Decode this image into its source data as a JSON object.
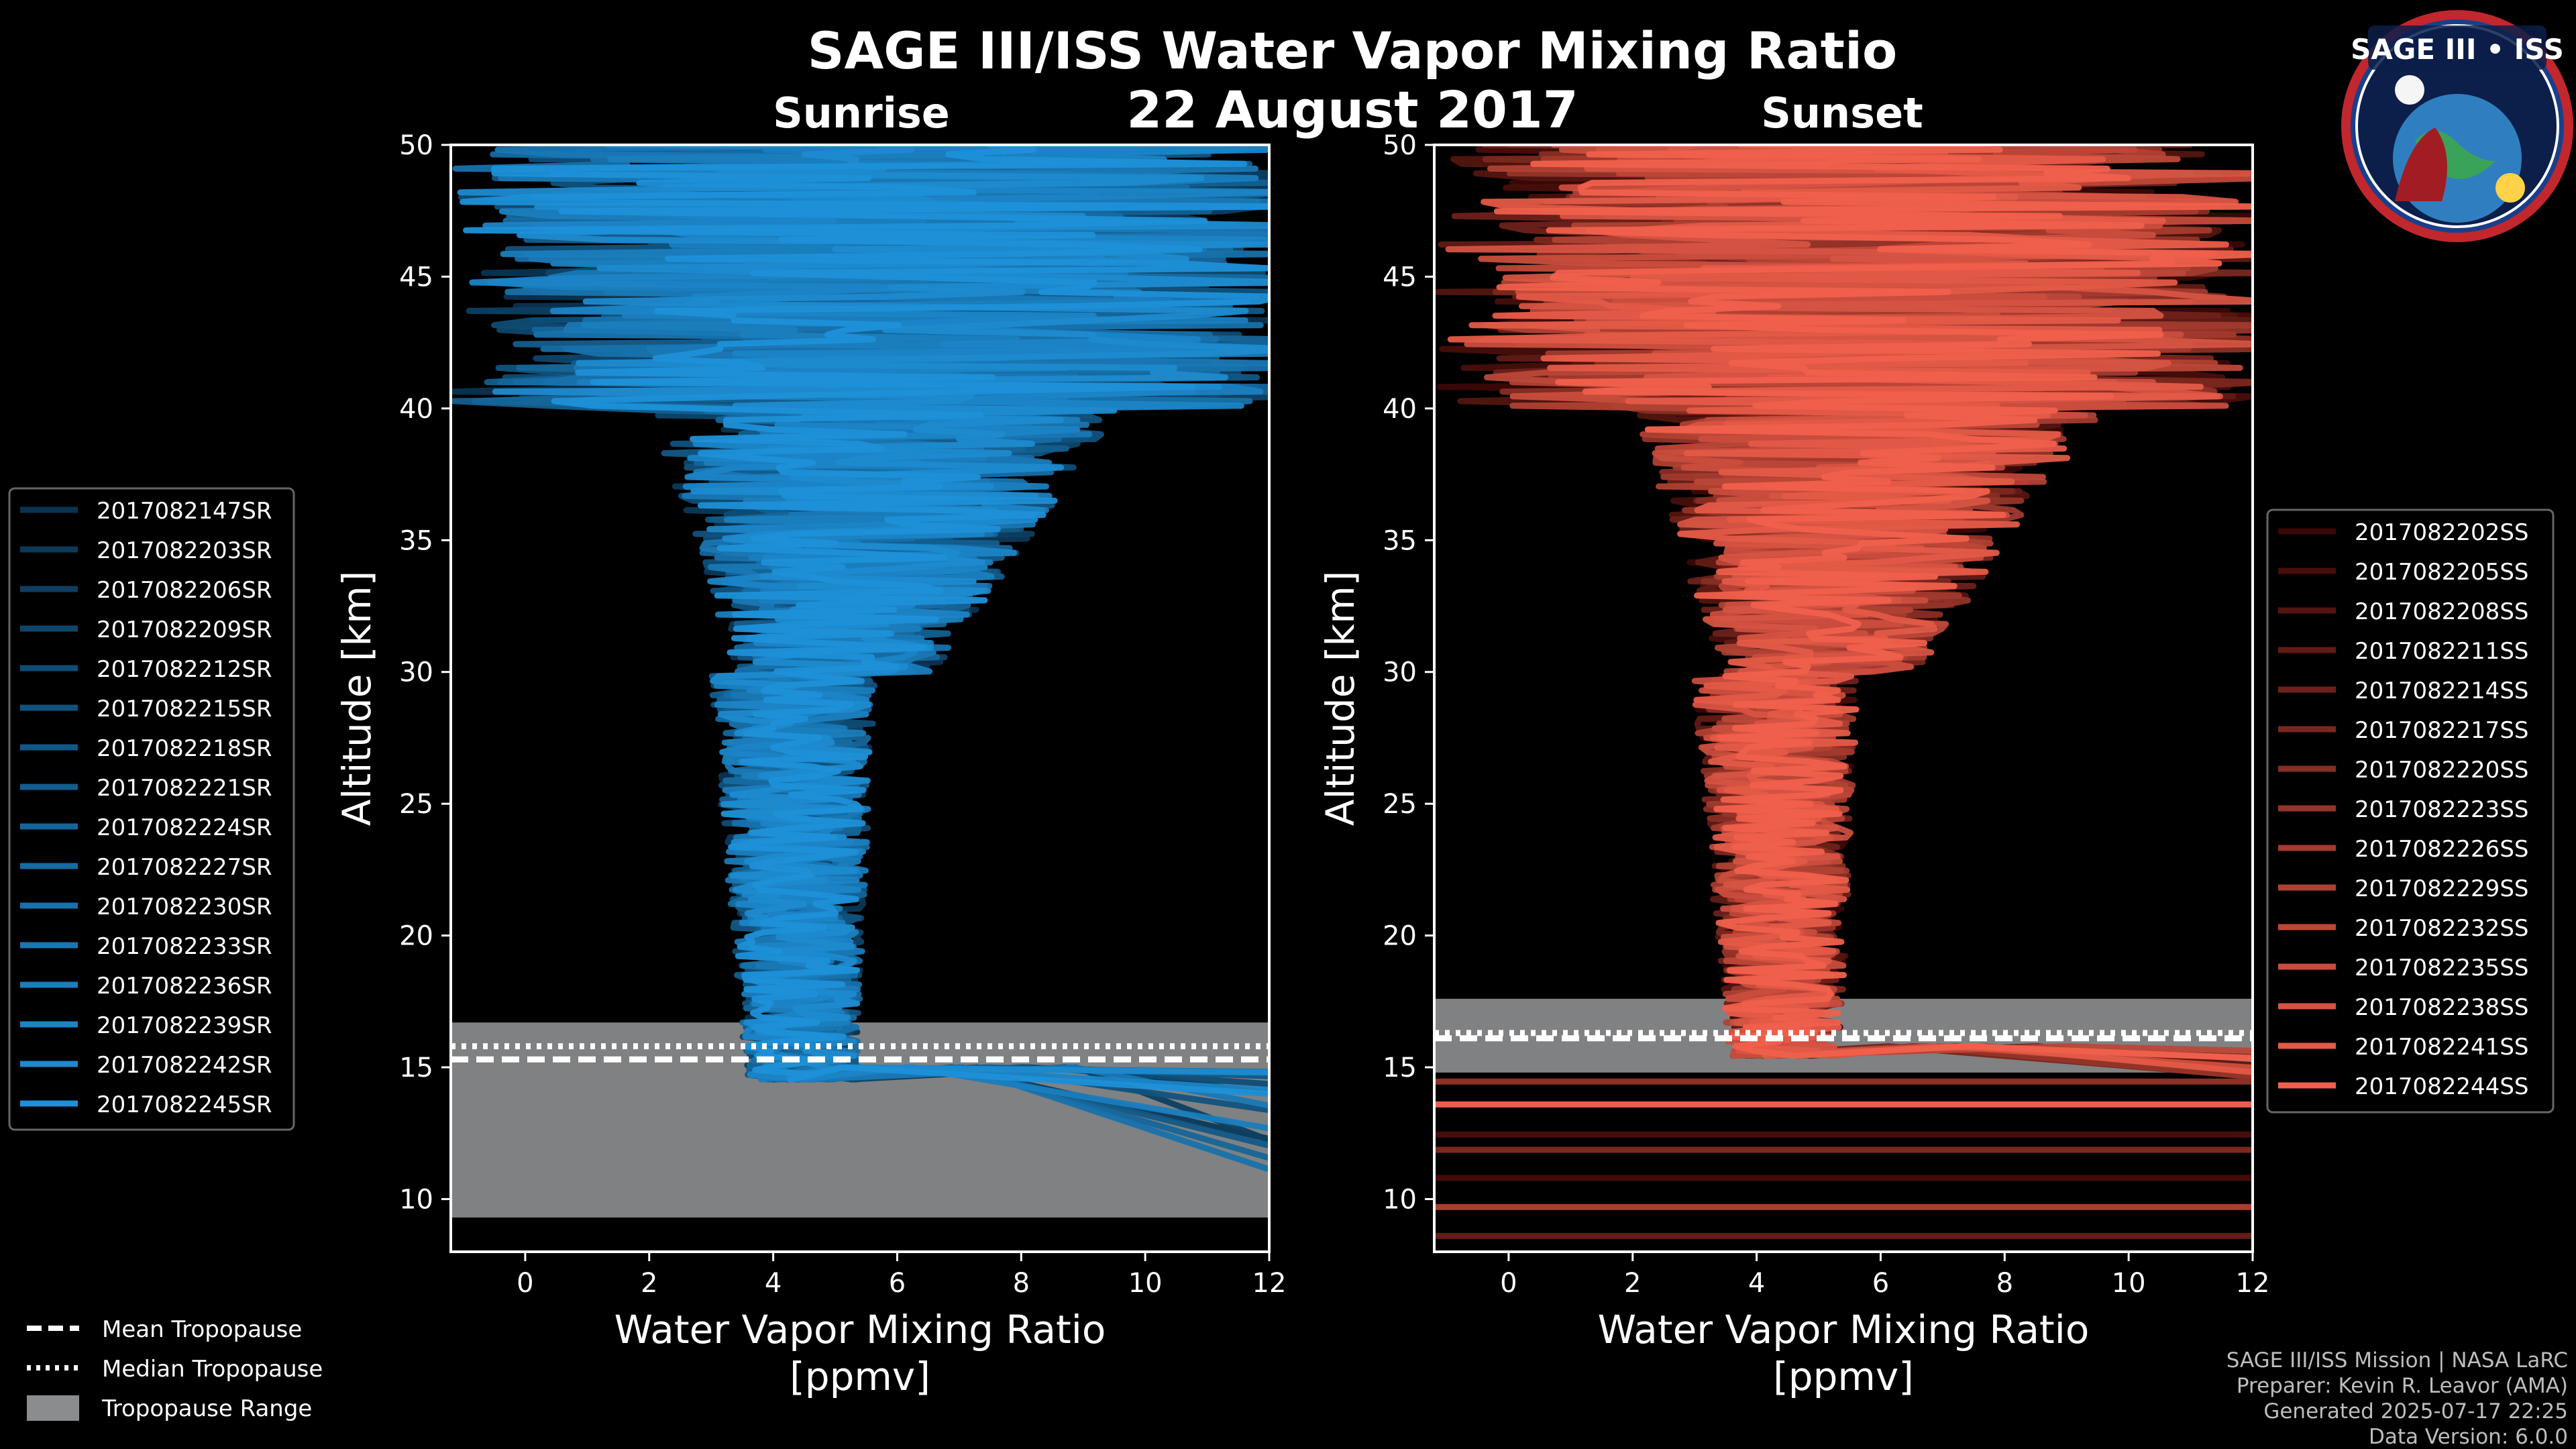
{
  "title_line1": "SAGE III/ISS Water Vapor Mixing Ratio",
  "title_line2": "22 August 2017",
  "logo": {
    "name": "SAGE III • ISS"
  },
  "chart_data": [
    {
      "type": "line",
      "title": "Sunrise",
      "xlabel": "Water Vapor Mixing Ratio",
      "xlabel_units": "[ppmv]",
      "ylabel": "Altitude [km]",
      "xlim": [
        -1.2,
        12
      ],
      "ylim": [
        8,
        50
      ],
      "xticks": [
        0,
        2,
        4,
        6,
        8,
        10,
        12
      ],
      "yticks": [
        10,
        15,
        20,
        25,
        30,
        35,
        40,
        45,
        50
      ],
      "color_dark": "#0a3350",
      "color_light": "#1e90d8",
      "seed": 11,
      "series": [
        "2017082147SR",
        "2017082203SR",
        "2017082206SR",
        "2017082209SR",
        "2017082212SR",
        "2017082215SR",
        "2017082218SR",
        "2017082221SR",
        "2017082224SR",
        "2017082227SR",
        "2017082230SR",
        "2017082233SR",
        "2017082236SR",
        "2017082239SR",
        "2017082242SR",
        "2017082245SR"
      ],
      "tropopause": {
        "mean_km": 15.3,
        "median_km": 15.8,
        "range_km": [
          9.3,
          16.7
        ]
      },
      "legend_position": "left"
    },
    {
      "type": "line",
      "title": "Sunset",
      "xlabel": "Water Vapor Mixing Ratio",
      "xlabel_units": "[ppmv]",
      "ylabel": "Altitude [km]",
      "xlim": [
        -1.2,
        12
      ],
      "ylim": [
        8,
        50
      ],
      "xticks": [
        0,
        2,
        4,
        6,
        8,
        10,
        12
      ],
      "yticks": [
        10,
        15,
        20,
        25,
        30,
        35,
        40,
        45,
        50
      ],
      "color_dark": "#3a0806",
      "color_light": "#f0604c",
      "seed": 29,
      "series": [
        "2017082202SS",
        "2017082205SS",
        "2017082208SS",
        "2017082211SS",
        "2017082214SS",
        "2017082217SS",
        "2017082220SS",
        "2017082223SS",
        "2017082226SS",
        "2017082229SS",
        "2017082232SS",
        "2017082235SS",
        "2017082238SS",
        "2017082241SS",
        "2017082244SS"
      ],
      "tropopause": {
        "mean_km": 16.1,
        "median_km": 16.3,
        "range_km": [
          14.8,
          17.6
        ]
      },
      "legend_position": "right"
    }
  ],
  "shared_legend": {
    "mean": "Mean Tropopause",
    "median": "Median Tropopause",
    "range": "Tropopause Range"
  },
  "footer": {
    "line1": "SAGE III/ISS Mission | NASA LaRC",
    "line2": "Preparer: Kevin R. Leavor (AMA)",
    "line3": "Generated 2025-07-17 22:25",
    "line4": "Data Version: 6.0.0"
  },
  "colors": {
    "tropo_fill": "#8a8c8e",
    "axis": "#ffffff"
  }
}
